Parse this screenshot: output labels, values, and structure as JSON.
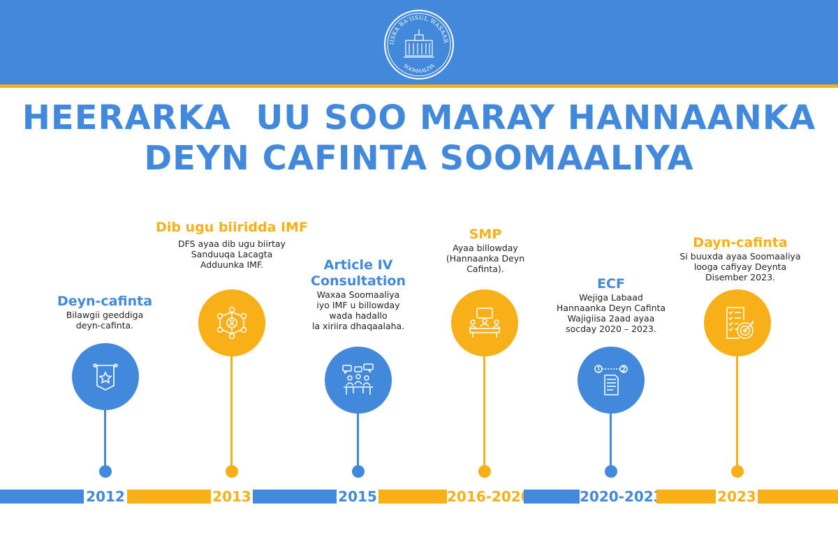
{
  "colors": {
    "blue": "#4389db",
    "gold": "#f7b017"
  },
  "header": {
    "seal_top_text": "XAFIISKA RA'IISUL WASAARAHA",
    "seal_bottom_text": "SOOMAALIYA"
  },
  "title": {
    "line1": "HEERARKA  UU SOO MARAY HANNAANKA",
    "line2": "DEYN CAFINTA SOOMAALIYA"
  },
  "timeline": [
    {
      "year": "2012",
      "title": "Deyn-cafinta",
      "desc": [
        "Bilawgii geeddiga",
        "deyn-cafinta."
      ],
      "color": "blue",
      "icon": "banner-star-icon"
    },
    {
      "year": "2013",
      "title": "Dib ugu biiridda IMF",
      "desc": [
        "DFS ayaa dib ugu biirtay",
        "Sanduuqa Lacagta",
        "Adduunka IMF."
      ],
      "color": "gold",
      "icon": "network-people-icon"
    },
    {
      "year": "2015",
      "title": "Article IV Consultation",
      "title_lines": [
        "Article IV",
        "Consultation"
      ],
      "desc": [
        "Waxaa Soomaaliya",
        "iyo IMF u billowday",
        "wada hadallo",
        "la xiriira dhaqaalaha."
      ],
      "color": "blue",
      "icon": "meeting-chat-icon"
    },
    {
      "year": "2016-2020",
      "title": "SMP",
      "desc": [
        "Ayaa billowday",
        "(Hannaanka Deyn",
        "Cafinta)."
      ],
      "color": "gold",
      "icon": "conference-table-icon"
    },
    {
      "year": "2020-2023",
      "title": "ECF",
      "desc": [
        "Wejiga Labaad",
        "Hannaanka Deyn Cafinta",
        "Wajigiisa 2aad ayaa",
        "socday 2020 – 2023."
      ],
      "color": "blue",
      "icon": "steps-document-icon"
    },
    {
      "year": "2023",
      "title": "Dayn-cafinta",
      "desc": [
        "Si buuxda ayaa Soomaaliya",
        "looga cafiyay Deynta",
        "Disember 2023."
      ],
      "color": "gold",
      "icon": "checklist-target-icon"
    }
  ]
}
